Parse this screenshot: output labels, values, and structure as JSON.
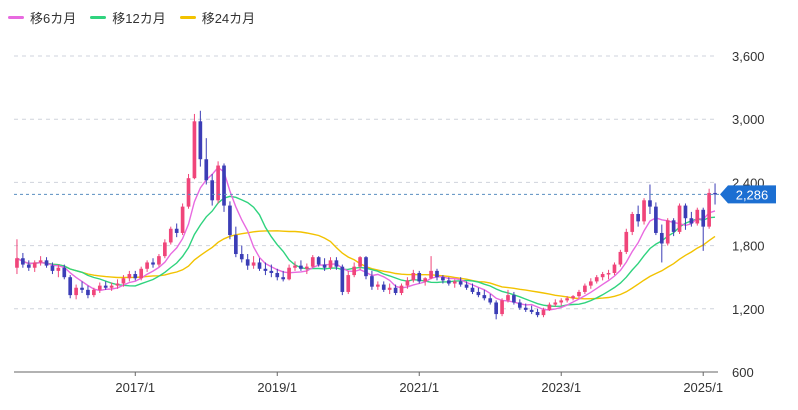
{
  "legend": [
    {
      "label": "移6カ月",
      "color": "#e86ae0"
    },
    {
      "label": "移12カ月",
      "color": "#2fd37e"
    },
    {
      "label": "移24カ月",
      "color": "#f2c200"
    }
  ],
  "colors": {
    "up": "#f0457a",
    "down": "#3b3db6",
    "grid": "#cfd3dc",
    "current_line": "#5a8fc0",
    "current_tag": "#1c6fd2",
    "axis_text": "#333333"
  },
  "chart_data": {
    "type": "candlestick",
    "title": "",
    "xlabel": "",
    "ylabel": "",
    "ylim": [
      600,
      3600
    ],
    "yticks": [
      600,
      1200,
      1800,
      2400,
      3000,
      3600
    ],
    "ytick_labels": [
      "600",
      "1,200",
      "1,800",
      "2,400",
      "3,000",
      "3,600"
    ],
    "x_tick_labels": [
      {
        "label": "2017/1",
        "index": 20
      },
      {
        "label": "2019/1",
        "index": 44
      },
      {
        "label": "2021/1",
        "index": 68
      },
      {
        "label": "2023/1",
        "index": 92
      },
      {
        "label": "2025/1",
        "index": 116
      }
    ],
    "current_value": 2286,
    "current_label": "2,286",
    "x_start": "2015/5",
    "candles": [
      [
        1590,
        1860,
        1530,
        1680
      ],
      [
        1680,
        1730,
        1590,
        1620
      ],
      [
        1620,
        1660,
        1560,
        1590
      ],
      [
        1590,
        1660,
        1550,
        1640
      ],
      [
        1640,
        1700,
        1610,
        1660
      ],
      [
        1660,
        1690,
        1590,
        1610
      ],
      [
        1610,
        1640,
        1530,
        1560
      ],
      [
        1560,
        1620,
        1500,
        1590
      ],
      [
        1590,
        1620,
        1480,
        1500
      ],
      [
        1500,
        1520,
        1300,
        1330
      ],
      [
        1330,
        1430,
        1290,
        1400
      ],
      [
        1400,
        1460,
        1350,
        1380
      ],
      [
        1380,
        1420,
        1300,
        1330
      ],
      [
        1330,
        1400,
        1310,
        1380
      ],
      [
        1380,
        1450,
        1350,
        1420
      ],
      [
        1420,
        1460,
        1380,
        1400
      ],
      [
        1400,
        1450,
        1370,
        1420
      ],
      [
        1420,
        1480,
        1390,
        1440
      ],
      [
        1440,
        1520,
        1410,
        1490
      ],
      [
        1490,
        1560,
        1460,
        1530
      ],
      [
        1530,
        1560,
        1470,
        1490
      ],
      [
        1490,
        1600,
        1470,
        1580
      ],
      [
        1580,
        1660,
        1550,
        1640
      ],
      [
        1640,
        1680,
        1590,
        1620
      ],
      [
        1620,
        1720,
        1600,
        1700
      ],
      [
        1700,
        1860,
        1680,
        1830
      ],
      [
        1830,
        1980,
        1810,
        1960
      ],
      [
        1960,
        2010,
        1880,
        1920
      ],
      [
        1920,
        2200,
        1900,
        2170
      ],
      [
        2170,
        2480,
        2150,
        2440
      ],
      [
        2440,
        3050,
        2430,
        2980
      ],
      [
        2980,
        3080,
        2550,
        2620
      ],
      [
        2620,
        2820,
        2380,
        2420
      ],
      [
        2420,
        2480,
        2180,
        2230
      ],
      [
        2230,
        2600,
        2200,
        2560
      ],
      [
        2560,
        2580,
        2120,
        2180
      ],
      [
        2180,
        2220,
        1860,
        1900
      ],
      [
        1900,
        1980,
        1690,
        1720
      ],
      [
        1720,
        1800,
        1640,
        1670
      ],
      [
        1670,
        1720,
        1570,
        1610
      ],
      [
        1610,
        1700,
        1580,
        1640
      ],
      [
        1640,
        1680,
        1560,
        1580
      ],
      [
        1580,
        1640,
        1520,
        1560
      ],
      [
        1560,
        1620,
        1500,
        1540
      ],
      [
        1540,
        1580,
        1470,
        1500
      ],
      [
        1500,
        1560,
        1460,
        1480
      ],
      [
        1480,
        1620,
        1470,
        1590
      ],
      [
        1590,
        1650,
        1560,
        1610
      ],
      [
        1610,
        1660,
        1560,
        1580
      ],
      [
        1580,
        1630,
        1530,
        1600
      ],
      [
        1600,
        1710,
        1590,
        1690
      ],
      [
        1690,
        1700,
        1600,
        1620
      ],
      [
        1620,
        1680,
        1560,
        1590
      ],
      [
        1590,
        1690,
        1570,
        1660
      ],
      [
        1660,
        1690,
        1570,
        1600
      ],
      [
        1600,
        1620,
        1330,
        1360
      ],
      [
        1360,
        1560,
        1340,
        1520
      ],
      [
        1520,
        1640,
        1500,
        1600
      ],
      [
        1600,
        1700,
        1570,
        1690
      ],
      [
        1690,
        1700,
        1480,
        1510
      ],
      [
        1510,
        1560,
        1380,
        1410
      ],
      [
        1410,
        1460,
        1380,
        1430
      ],
      [
        1430,
        1460,
        1360,
        1380
      ],
      [
        1380,
        1440,
        1340,
        1400
      ],
      [
        1400,
        1430,
        1330,
        1350
      ],
      [
        1350,
        1440,
        1330,
        1420
      ],
      [
        1420,
        1500,
        1390,
        1470
      ],
      [
        1470,
        1570,
        1450,
        1540
      ],
      [
        1540,
        1560,
        1440,
        1460
      ],
      [
        1460,
        1500,
        1420,
        1490
      ],
      [
        1490,
        1700,
        1480,
        1560
      ],
      [
        1560,
        1580,
        1470,
        1500
      ],
      [
        1500,
        1520,
        1440,
        1470
      ],
      [
        1470,
        1500,
        1420,
        1440
      ],
      [
        1440,
        1480,
        1400,
        1460
      ],
      [
        1460,
        1500,
        1410,
        1430
      ],
      [
        1430,
        1460,
        1380,
        1400
      ],
      [
        1400,
        1440,
        1340,
        1360
      ],
      [
        1360,
        1400,
        1310,
        1330
      ],
      [
        1330,
        1380,
        1280,
        1300
      ],
      [
        1300,
        1340,
        1240,
        1260
      ],
      [
        1260,
        1280,
        1100,
        1150
      ],
      [
        1150,
        1300,
        1130,
        1280
      ],
      [
        1280,
        1380,
        1260,
        1330
      ],
      [
        1330,
        1360,
        1240,
        1260
      ],
      [
        1260,
        1290,
        1190,
        1210
      ],
      [
        1210,
        1250,
        1170,
        1190
      ],
      [
        1190,
        1230,
        1150,
        1170
      ],
      [
        1170,
        1200,
        1120,
        1140
      ],
      [
        1140,
        1210,
        1120,
        1190
      ],
      [
        1190,
        1260,
        1180,
        1240
      ],
      [
        1240,
        1290,
        1220,
        1260
      ],
      [
        1260,
        1300,
        1230,
        1280
      ],
      [
        1280,
        1320,
        1260,
        1300
      ],
      [
        1300,
        1330,
        1280,
        1320
      ],
      [
        1320,
        1380,
        1300,
        1360
      ],
      [
        1360,
        1440,
        1340,
        1420
      ],
      [
        1420,
        1490,
        1390,
        1460
      ],
      [
        1460,
        1520,
        1440,
        1500
      ],
      [
        1500,
        1550,
        1470,
        1530
      ],
      [
        1530,
        1570,
        1480,
        1540
      ],
      [
        1540,
        1640,
        1520,
        1620
      ],
      [
        1620,
        1760,
        1600,
        1740
      ],
      [
        1740,
        1960,
        1720,
        1930
      ],
      [
        1930,
        2120,
        1900,
        2100
      ],
      [
        2100,
        2180,
        1980,
        2030
      ],
      [
        2030,
        2250,
        2000,
        2230
      ],
      [
        2230,
        2380,
        2100,
        2170
      ],
      [
        2170,
        2210,
        1900,
        1920
      ],
      [
        1920,
        2000,
        1640,
        1820
      ],
      [
        1820,
        2060,
        1800,
        2040
      ],
      [
        2040,
        2060,
        1890,
        1930
      ],
      [
        1930,
        2200,
        1910,
        2180
      ],
      [
        2180,
        2200,
        1950,
        2060
      ],
      [
        2060,
        2120,
        1980,
        2010
      ],
      [
        2010,
        2160,
        1990,
        2140
      ],
      [
        2140,
        2160,
        1750,
        1980
      ],
      [
        1980,
        2340,
        1960,
        2300
      ],
      [
        2300,
        2390,
        2190,
        2286
      ]
    ]
  }
}
